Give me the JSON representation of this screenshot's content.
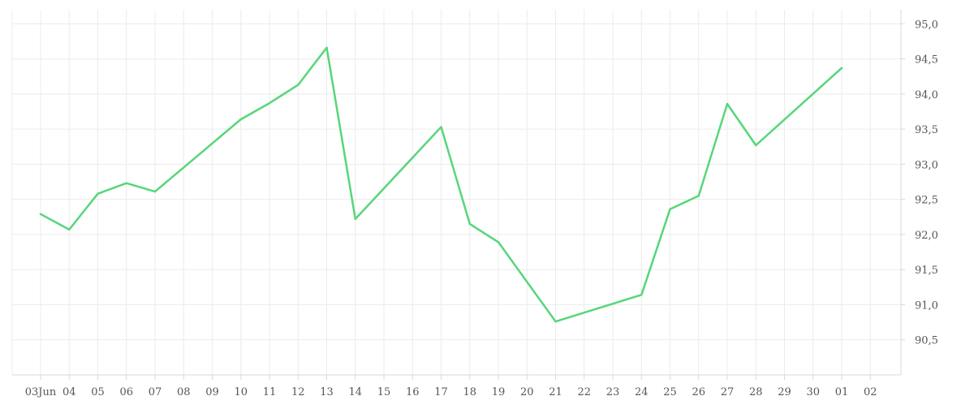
{
  "chart_data": {
    "type": "line",
    "title": "",
    "xlabel": "",
    "ylabel": "",
    "x_tick_labels": [
      "03Jun",
      "04",
      "05",
      "06",
      "07",
      "08",
      "09",
      "10",
      "11",
      "12",
      "13",
      "14",
      "15",
      "16",
      "17",
      "18",
      "19",
      "20",
      "21",
      "22",
      "23",
      "24",
      "25",
      "26",
      "27",
      "28",
      "29",
      "30",
      "01",
      "02"
    ],
    "y_tick_labels": [
      "90,5",
      "91,0",
      "91,5",
      "92,0",
      "92,5",
      "93,0",
      "93,5",
      "94,0",
      "94,5",
      "95,0"
    ],
    "y_ticks": [
      90.5,
      91.0,
      91.5,
      92.0,
      92.5,
      93.0,
      93.5,
      94.0,
      94.5,
      95.0
    ],
    "ylim": [
      90.0,
      95.2
    ],
    "grid": true,
    "series": [
      {
        "color": "#57d67a",
        "points": [
          {
            "x": "2024-06-03",
            "y": 92.29
          },
          {
            "x": "2024-06-04",
            "y": 92.07
          },
          {
            "x": "2024-06-05",
            "y": 92.58
          },
          {
            "x": "2024-06-06",
            "y": 92.73
          },
          {
            "x": "2024-06-07",
            "y": 92.61
          },
          {
            "x": "2024-06-10",
            "y": 93.64
          },
          {
            "x": "2024-06-11",
            "y": 93.87
          },
          {
            "x": "2024-06-12",
            "y": 94.13
          },
          {
            "x": "2024-06-13",
            "y": 94.66
          },
          {
            "x": "2024-06-14",
            "y": 92.22
          },
          {
            "x": "2024-06-17",
            "y": 93.53
          },
          {
            "x": "2024-06-18",
            "y": 92.15
          },
          {
            "x": "2024-06-19",
            "y": 91.89
          },
          {
            "x": "2024-06-21",
            "y": 90.76
          },
          {
            "x": "2024-06-24",
            "y": 91.14
          },
          {
            "x": "2024-06-25",
            "y": 92.36
          },
          {
            "x": "2024-06-26",
            "y": 92.55
          },
          {
            "x": "2024-06-27",
            "y": 93.86
          },
          {
            "x": "2024-06-28",
            "y": 93.27
          },
          {
            "x": "2024-07-01",
            "y": 94.37
          }
        ]
      }
    ]
  }
}
